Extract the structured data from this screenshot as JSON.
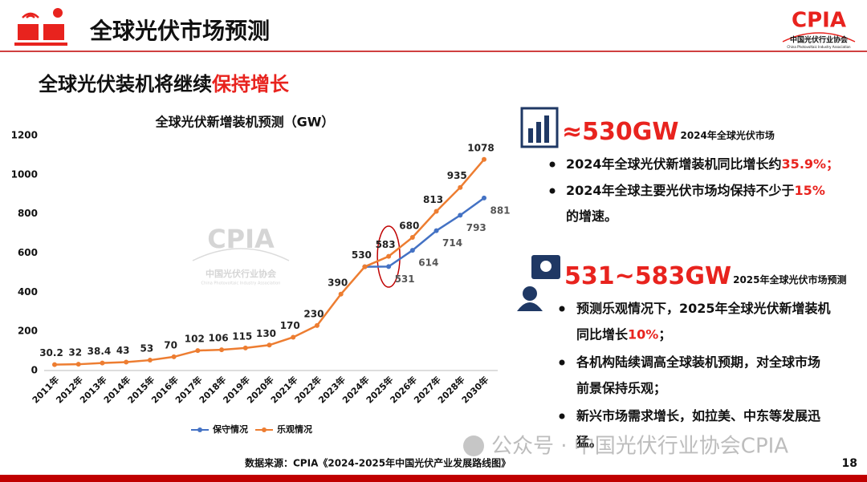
{
  "header": {
    "title": "全球光伏市场预测",
    "logo": {
      "name": "CPIA",
      "org": "中国光伏行业协会",
      "org_en": "China Photovoltaic Industry Association"
    }
  },
  "subtitle": [
    {
      "text": "全球光伏装机将继续",
      "highlight": false
    },
    {
      "text": "保持增长",
      "highlight": true
    }
  ],
  "chart_data": {
    "type": "line",
    "title": "全球光伏新增装机预测（GW）",
    "categories": [
      "2011年",
      "2012年",
      "2013年",
      "2014年",
      "2015年",
      "2016年",
      "2017年",
      "2018年",
      "2019年",
      "2020年",
      "2021年",
      "2022年",
      "2023年",
      "2024年",
      "2025年",
      "2026年",
      "2027年",
      "2028年",
      "2030年"
    ],
    "series": [
      {
        "name": "保守情况",
        "color": "#4472c4",
        "values": [
          null,
          null,
          null,
          null,
          null,
          null,
          null,
          null,
          null,
          null,
          null,
          null,
          null,
          530,
          531,
          614,
          714,
          793,
          881
        ]
      },
      {
        "name": "乐观情况",
        "color": "#ed7d31",
        "values": [
          30.2,
          32,
          38.4,
          43,
          53,
          70,
          102,
          106,
          115,
          130,
          170,
          230,
          390,
          530,
          583,
          680,
          813,
          935,
          1078
        ]
      }
    ],
    "ylim": [
      0,
      1200
    ],
    "yticks": [
      0,
      200,
      400,
      600,
      800,
      1000,
      1200
    ],
    "legend": "bottom",
    "grid": false
  },
  "chart_watermark": {
    "name": "CPIA",
    "org": "中国光伏行业协会",
    "org_en": "China Photovoltaic Industry Association"
  },
  "panel": [
    {
      "headline": "≈530GW",
      "note": "2024年全球光伏市场",
      "bullets": [
        [
          [
            {
              "text": "2024年全球光伏新增装机同比增长约",
              "highlight": false
            },
            {
              "text": "35.9%；",
              "highlight": true
            }
          ]
        ],
        [
          [
            {
              "text": "2024年全球主要光伏市场均保持不少于",
              "highlight": false
            },
            {
              "text": "15%",
              "highlight": true
            }
          ],
          [
            {
              "text": "的增速。",
              "highlight": false
            }
          ]
        ]
      ]
    },
    {
      "headline": "531~583GW",
      "note": "2025年全球光伏市场预测",
      "bullets": [
        [
          [
            {
              "text": "预测乐观情况下，2025年全球光伏新增装机",
              "highlight": false
            }
          ],
          [
            {
              "text": "同比增长",
              "highlight": false
            },
            {
              "text": "10%",
              "highlight": true
            },
            {
              "text": "；",
              "highlight": false
            }
          ]
        ],
        [
          [
            {
              "text": "各机构陆续调高全球装机预期，对全球市场",
              "highlight": false
            }
          ],
          [
            {
              "text": "前景保持乐观；",
              "highlight": false
            }
          ]
        ],
        [
          [
            {
              "text": "新兴市场需求增长，如拉美、中东等发展迅",
              "highlight": false
            }
          ],
          [
            {
              "text": "猛。",
              "highlight": false
            }
          ]
        ]
      ]
    }
  ],
  "source": "数据来源：CPIA《2024-2025年中国光伏产业发展路线图》",
  "page_number": "18",
  "overlay": "公众号 · 中国光伏行业协会CPIA"
}
